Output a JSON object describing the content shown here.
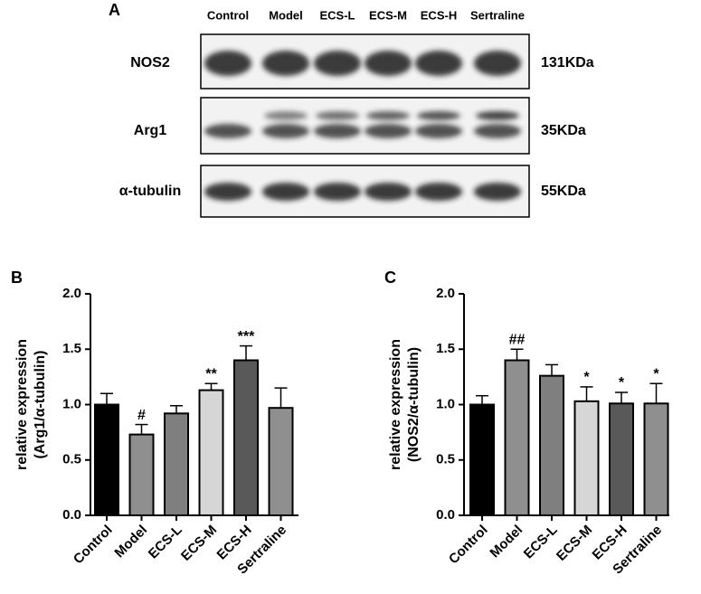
{
  "blot": {
    "panel": "A",
    "lanes": [
      "Control",
      "Model",
      "ECS-L",
      "ECS-M",
      "ECS-H",
      "Sertraline"
    ],
    "rows": [
      {
        "label": "NOS2",
        "size": "131KDa"
      },
      {
        "label": "Arg1",
        "size": "35KDa"
      },
      {
        "label": "α-tubulin",
        "size": "55KDa"
      }
    ]
  },
  "chart_data": [
    {
      "type": "bar",
      "panel": "B",
      "ylabel": [
        "relative expression",
        "(Arg1/α-tubulin)"
      ],
      "categories": [
        "Control",
        "Model",
        "ECS-L",
        "ECS-M",
        "ECS-H",
        "Sertraline"
      ],
      "values": [
        1.0,
        0.73,
        0.92,
        1.13,
        1.4,
        0.97
      ],
      "errors": [
        0.1,
        0.09,
        0.07,
        0.06,
        0.13,
        0.18
      ],
      "significance": [
        null,
        "#",
        null,
        "**",
        "***",
        null
      ],
      "colors": [
        "#000000",
        "#8f8f8f",
        "#7f7f7f",
        "#d6d6d6",
        "#595959",
        "#8f8f8f"
      ],
      "ylim": [
        0,
        2.0
      ],
      "yticks": [
        {
          "value": 0,
          "label": "0.0"
        },
        0.5,
        {
          "value": 1,
          "label": "1.0"
        },
        1.5,
        {
          "value": 2,
          "label": "2.0"
        }
      ]
    },
    {
      "type": "bar",
      "panel": "C",
      "ylabel": [
        "relative expression",
        "(NOS2/α-tubulin)"
      ],
      "categories": [
        "Control",
        "Model",
        "ECS-L",
        "ECS-M",
        "ECS-H",
        "Sertraline"
      ],
      "values": [
        1.0,
        1.4,
        1.26,
        1.03,
        1.01,
        1.01
      ],
      "errors": [
        0.08,
        0.1,
        0.1,
        0.13,
        0.1,
        0.18
      ],
      "significance": [
        null,
        "##",
        null,
        "*",
        "*",
        "*"
      ],
      "colors": [
        "#000000",
        "#8f8f8f",
        "#7f7f7f",
        "#d6d6d6",
        "#595959",
        "#8f8f8f"
      ],
      "ylim": [
        0,
        2.0
      ],
      "yticks": [
        {
          "value": 0,
          "label": "0.0"
        },
        0.5,
        {
          "value": 1,
          "label": "1.0"
        },
        1.5,
        {
          "value": 2,
          "label": "2.0"
        }
      ]
    }
  ]
}
